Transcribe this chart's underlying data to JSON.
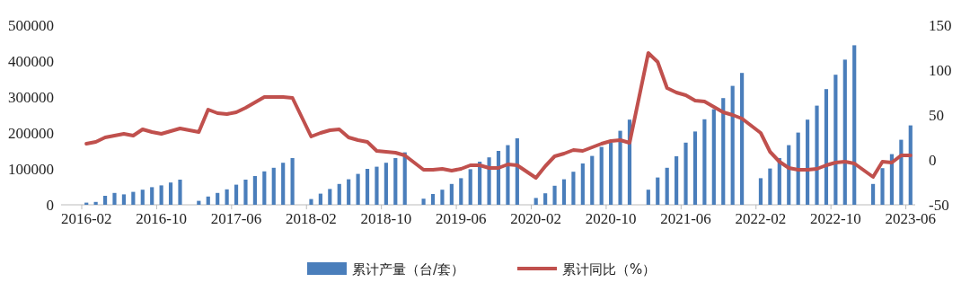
{
  "chart_data": {
    "type": "bar",
    "categories": [
      "2016-02",
      null,
      null,
      null,
      null,
      null,
      null,
      null,
      "2016-10",
      null,
      null,
      null,
      null,
      null,
      null,
      null,
      "2017-06",
      null,
      null,
      null,
      null,
      null,
      null,
      null,
      "2018-02",
      null,
      null,
      null,
      null,
      null,
      null,
      null,
      "2018-10",
      null,
      null,
      null,
      null,
      null,
      null,
      null,
      "2019-06",
      null,
      null,
      null,
      null,
      null,
      null,
      null,
      "2020-02",
      null,
      null,
      null,
      null,
      null,
      null,
      null,
      "2020-10",
      null,
      null,
      null,
      null,
      null,
      null,
      null,
      "2021-06",
      null,
      null,
      null,
      null,
      null,
      null,
      null,
      "2022-02",
      null,
      null,
      null,
      null,
      null,
      null,
      null,
      "2022-10",
      null,
      null,
      null,
      null,
      null,
      null,
      null,
      "2023-06"
    ],
    "series": [
      {
        "name": "累计产量（台/套）",
        "color": "#4a7ebb",
        "values": [
          6000,
          8000,
          25000,
          33000,
          29000,
          36000,
          42000,
          49000,
          54000,
          62000,
          70000,
          null,
          11000,
          23000,
          33000,
          43000,
          56000,
          70000,
          80000,
          93000,
          103000,
          117000,
          130000,
          null,
          16000,
          31000,
          44000,
          58000,
          71000,
          86000,
          100000,
          106000,
          117000,
          130000,
          146000,
          null,
          17000,
          30000,
          42000,
          58000,
          74000,
          99000,
          120000,
          132000,
          150000,
          166000,
          185000,
          null,
          19000,
          32000,
          53000,
          71000,
          92000,
          115000,
          136000,
          161000,
          173000,
          206000,
          237000,
          null,
          42000,
          76000,
          103000,
          135000,
          173000,
          204000,
          238000,
          266000,
          297000,
          331000,
          367000,
          null,
          74000,
          101000,
          130000,
          166000,
          201000,
          237000,
          276000,
          322000,
          362000,
          404000,
          444000,
          null,
          58000,
          102000,
          141000,
          181000,
          221000
        ]
      },
      {
        "name": "累计同比（%）",
        "type": "line",
        "axis": "y2",
        "color": "#c0504d",
        "values": [
          18,
          20,
          25,
          27,
          29,
          27,
          34,
          31,
          29,
          32,
          35,
          null,
          31,
          56,
          52,
          51,
          53,
          58,
          64,
          70,
          70,
          70,
          69,
          null,
          26,
          30,
          33,
          34,
          25,
          22,
          20,
          10,
          9,
          8,
          5,
          null,
          -11,
          -11,
          -10,
          -12,
          -10,
          -6,
          -6,
          -9,
          -9,
          -5,
          -6,
          null,
          -20,
          -7,
          4,
          7,
          11,
          10,
          14,
          18,
          21,
          22,
          19,
          null,
          119,
          109,
          80,
          75,
          72,
          66,
          65,
          59,
          53,
          50,
          46,
          null,
          30,
          9,
          -2,
          -9,
          -11,
          -11,
          -10,
          -6,
          -3,
          -2,
          -4,
          null,
          -19,
          -2,
          -3,
          5,
          5
        ]
      }
    ],
    "ylim": [
      0,
      500000
    ],
    "yticks": [
      0,
      100000,
      200000,
      300000,
      400000,
      500000
    ],
    "y2lim": [
      -50,
      150
    ],
    "y2ticks": [
      -50,
      0,
      50,
      100,
      150
    ],
    "legend": "bottom"
  }
}
